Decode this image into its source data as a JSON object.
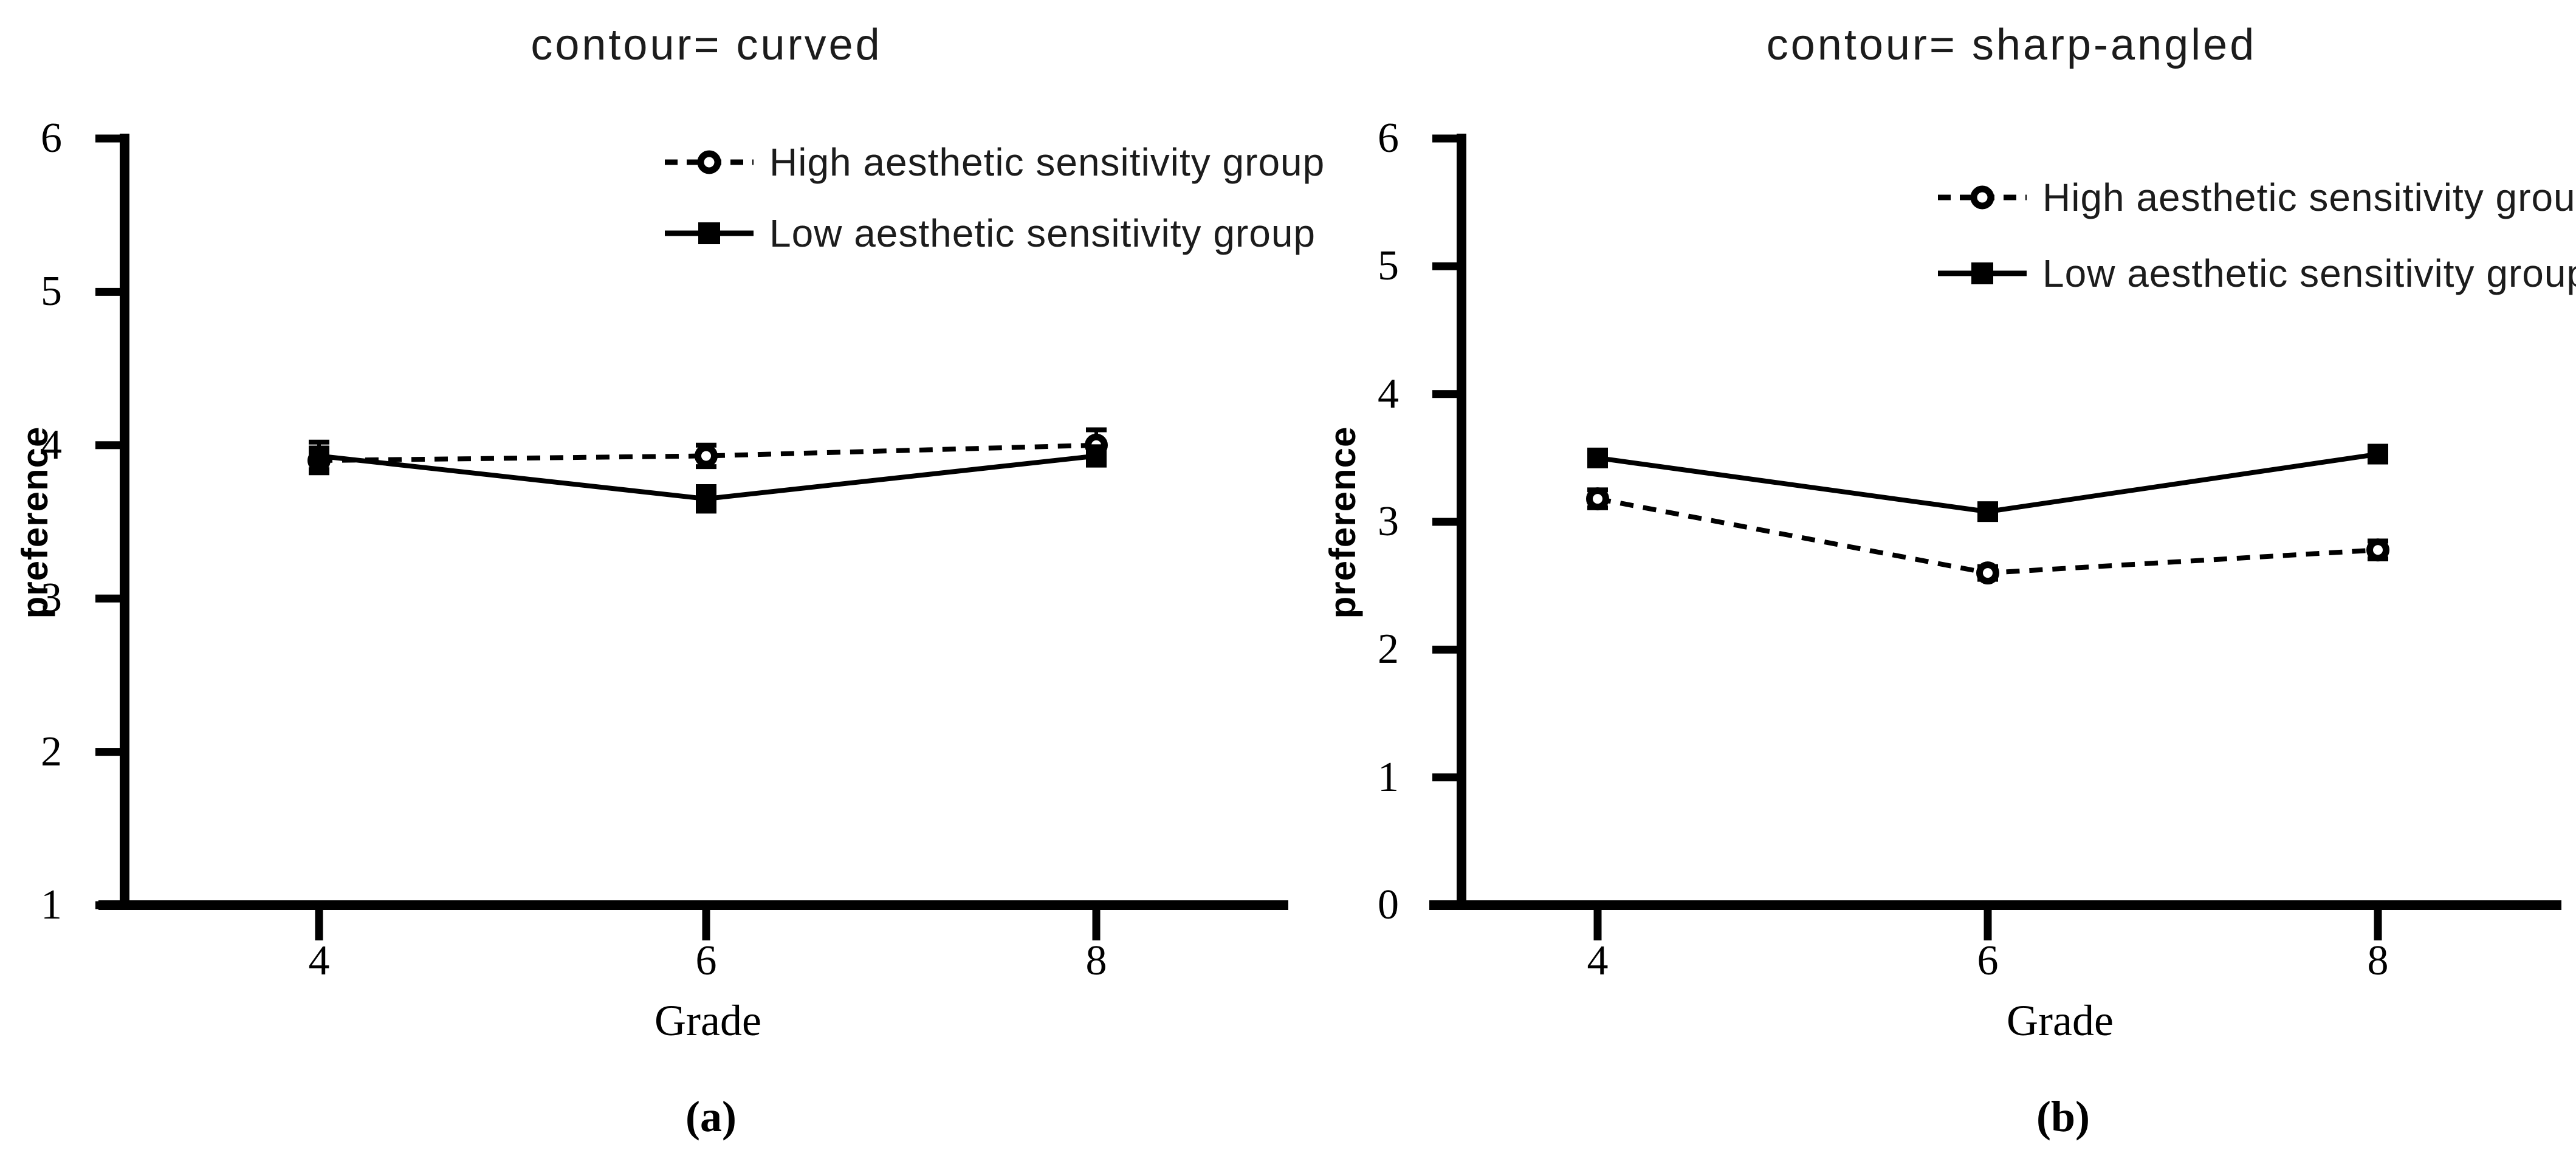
{
  "page": {
    "background": "#ffffff",
    "ink": "#000000"
  },
  "legend": {
    "high_label": "High aesthetic sensitivity group",
    "low_label": "Low aesthetic sensitivity group"
  },
  "panels": [
    {
      "title": "contour= curved",
      "caption": "(a)",
      "x_axis_label": "Grade",
      "y_axis_label": "preference",
      "x_tick_labels": [
        "4",
        "6",
        "8"
      ],
      "y_tick_labels": [
        "1",
        "2",
        "3",
        "4",
        "5",
        "6"
      ]
    },
    {
      "title": "contour= sharp-angled",
      "caption": "(b)",
      "x_axis_label": "Grade",
      "y_axis_label": "preference",
      "x_tick_labels": [
        "4",
        "6",
        "8"
      ],
      "y_tick_labels": [
        "0",
        "1",
        "2",
        "3",
        "4",
        "5",
        "6"
      ]
    }
  ],
  "chart_data": [
    {
      "type": "line",
      "title": "contour= curved",
      "xlabel": "Grade",
      "ylabel": "preference",
      "categories": [
        4,
        6,
        8
      ],
      "ylim": [
        1,
        6
      ],
      "yticks": [
        1,
        2,
        3,
        4,
        5,
        6
      ],
      "grid": false,
      "legend_position": "top-right",
      "series": [
        {
          "name": "High aesthetic sensitivity group",
          "line": "dashed",
          "marker": "open-circle",
          "values": [
            3.9,
            3.93,
            4.0
          ],
          "errors": [
            0.08,
            0.07,
            0.1
          ]
        },
        {
          "name": "Low aesthetic sensitivity group",
          "line": "solid",
          "marker": "filled-square",
          "values": [
            3.93,
            3.65,
            3.93
          ],
          "errors": [
            0.09,
            0.08,
            0.06
          ]
        }
      ]
    },
    {
      "type": "line",
      "title": "contour= sharp-angled",
      "xlabel": "Grade",
      "ylabel": "preference",
      "categories": [
        4,
        6,
        8
      ],
      "ylim": [
        0,
        6
      ],
      "yticks": [
        0,
        1,
        2,
        3,
        4,
        5,
        6
      ],
      "grid": false,
      "legend_position": "top-right",
      "series": [
        {
          "name": "High aesthetic sensitivity group",
          "line": "dashed",
          "marker": "open-circle",
          "values": [
            3.18,
            2.6,
            2.78
          ],
          "errors": [
            0.07,
            0.05,
            0.07
          ]
        },
        {
          "name": "Low aesthetic sensitivity group",
          "line": "solid",
          "marker": "filled-square",
          "values": [
            3.5,
            3.08,
            3.53
          ],
          "errors": [
            0.06,
            0.05,
            0.06
          ]
        }
      ]
    }
  ]
}
